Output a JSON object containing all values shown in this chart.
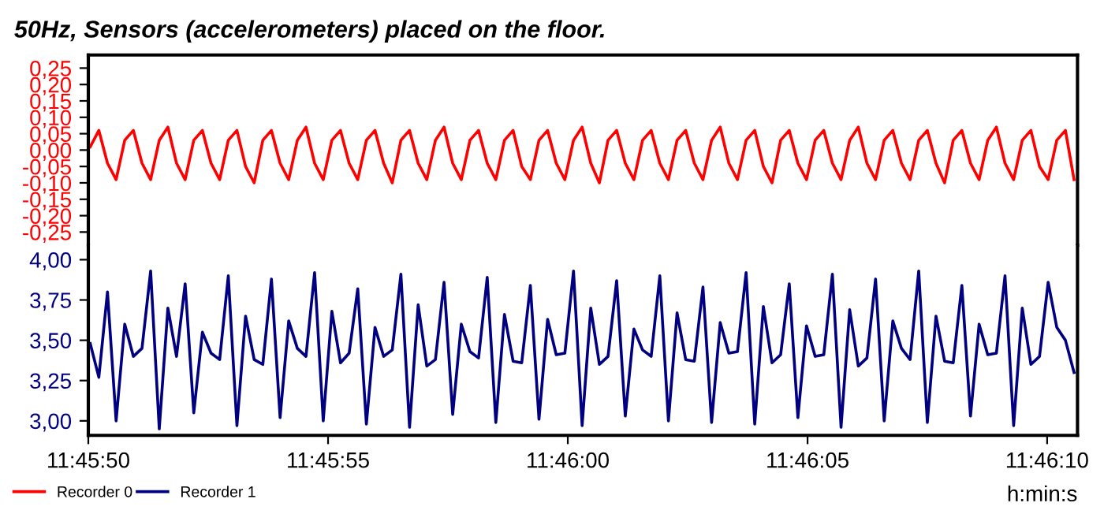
{
  "chart_data": [
    {
      "type": "line",
      "title": "50Hz, Sensors (accelerometers) placed on the floor.",
      "tick_labels": "y",
      "legend": "bottom left",
      "x": [
        11.7639,
        11.76395,
        11.764,
        11.76405,
        11.7641,
        11.76415,
        11.7642,
        11.76425,
        11.7643,
        11.76435,
        11.7644,
        11.76445,
        11.7645,
        11.76455,
        11.7646,
        11.76465,
        11.7647,
        11.76475,
        11.7648,
        11.76485,
        11.7649,
        11.76495,
        11.765,
        11.76505,
        11.7651,
        11.76515,
        11.7652,
        11.76525,
        11.7653,
        11.76535,
        11.7654,
        11.76545,
        11.7655,
        11.76555,
        11.7656,
        11.76565,
        11.7657,
        11.76575,
        11.7658,
        11.76585,
        11.7659,
        11.76595,
        11.766,
        11.76605,
        11.7661,
        11.76615,
        11.7662,
        11.76625,
        11.7663,
        11.76635,
        11.7664,
        11.76645,
        11.7665,
        11.76655,
        11.7666,
        11.76665,
        11.7667,
        11.76675,
        11.7668,
        11.76685,
        11.7669,
        11.76695,
        11.767,
        11.76705,
        11.7671,
        11.76715,
        11.7672,
        11.76725,
        11.7673,
        11.76735,
        11.7674,
        11.76745,
        11.7675,
        11.76755,
        11.7676,
        11.76765,
        11.7677,
        11.76775,
        11.7678,
        11.76785,
        11.7679,
        11.76795,
        11.768,
        11.76805,
        11.7681,
        11.76815,
        11.7682,
        11.76825,
        11.7683,
        11.76835,
        11.7684,
        11.76845,
        11.7685,
        11.76855,
        11.7686,
        11.76865,
        11.7687,
        11.76875,
        11.7688,
        11.76885,
        11.7689,
        11.76895,
        11.769,
        11.76905,
        11.7691,
        11.76915,
        11.7692,
        11.76925,
        11.7693,
        11.76935,
        11.7694,
        11.76945,
        11.7695,
        11.76955,
        11.7696
      ],
      "series": [
        {
          "name": "Recorder 0",
          "color": "#ff0000",
          "values": [
            0.01,
            0.06,
            -0.04,
            -0.09,
            0.03,
            0.06,
            -0.04,
            -0.09,
            0.03,
            0.07,
            -0.04,
            -0.09,
            0.03,
            0.06,
            -0.04,
            -0.09,
            0.03,
            0.06,
            -0.05,
            -0.1,
            0.03,
            0.06,
            -0.04,
            -0.09,
            0.03,
            0.07,
            -0.04,
            -0.09,
            0.03,
            0.06,
            -0.04,
            -0.09,
            0.03,
            0.06,
            -0.04,
            -0.1,
            0.03,
            0.06,
            -0.04,
            -0.09,
            0.03,
            0.07,
            -0.04,
            -0.09,
            0.03,
            0.06,
            -0.04,
            -0.09,
            0.03,
            0.06,
            -0.05,
            -0.09,
            0.03,
            0.06,
            -0.04,
            -0.09,
            0.03,
            0.07,
            -0.04,
            -0.1,
            0.03,
            0.06,
            -0.04,
            -0.09,
            0.03,
            0.06,
            -0.04,
            -0.09,
            0.03,
            0.06,
            -0.04,
            -0.09,
            0.03,
            0.07,
            -0.04,
            -0.09,
            0.03,
            0.06,
            -0.05,
            -0.1,
            0.03,
            0.06,
            -0.04,
            -0.09,
            0.03,
            0.06,
            -0.04,
            -0.09,
            0.03,
            0.07,
            -0.04,
            -0.09,
            0.03,
            0.06,
            -0.04,
            -0.09,
            0.03,
            0.06,
            -0.04,
            -0.1,
            0.03,
            0.06,
            -0.04,
            -0.09,
            0.03,
            0.07,
            -0.04,
            -0.09,
            0.03,
            0.06,
            -0.05,
            -0.09,
            0.03,
            0.06,
            -0.09
          ]
        }
      ],
      "xlim": [
        11.763889,
        11.76962
      ],
      "ylim": [
        -0.29,
        0.29
      ],
      "yticks": [
        {
          "value": -0.25,
          "label": "-0,25"
        },
        {
          "value": -0.2,
          "label": "-0,20"
        },
        {
          "value": -0.15,
          "label": "-0,15"
        },
        {
          "value": -0.1,
          "label": "-0,10"
        },
        {
          "value": -0.05,
          "label": "-0,05"
        },
        {
          "value": 0,
          "label": "0,00"
        },
        {
          "value": 0.05,
          "label": "0,05"
        },
        {
          "value": 0.1,
          "label": "0,10"
        },
        {
          "value": 0.15,
          "label": "0,15"
        },
        {
          "value": 0.2,
          "label": "0,20"
        },
        {
          "value": 0.25,
          "label": "0,25"
        }
      ]
    },
    {
      "type": "line",
      "xlabel": "h:min:s",
      "legend": "bottom left",
      "x": [
        11.7639,
        11.76395,
        11.764,
        11.76405,
        11.7641,
        11.76415,
        11.7642,
        11.76425,
        11.7643,
        11.76435,
        11.7644,
        11.76445,
        11.7645,
        11.76455,
        11.7646,
        11.76465,
        11.7647,
        11.76475,
        11.7648,
        11.76485,
        11.7649,
        11.76495,
        11.765,
        11.76505,
        11.7651,
        11.76515,
        11.7652,
        11.76525,
        11.7653,
        11.76535,
        11.7654,
        11.76545,
        11.7655,
        11.76555,
        11.7656,
        11.76565,
        11.7657,
        11.76575,
        11.7658,
        11.76585,
        11.7659,
        11.76595,
        11.766,
        11.76605,
        11.7661,
        11.76615,
        11.7662,
        11.76625,
        11.7663,
        11.76635,
        11.7664,
        11.76645,
        11.7665,
        11.76655,
        11.7666,
        11.76665,
        11.7667,
        11.76675,
        11.7668,
        11.76685,
        11.7669,
        11.76695,
        11.767,
        11.76705,
        11.7671,
        11.76715,
        11.7672,
        11.76725,
        11.7673,
        11.76735,
        11.7674,
        11.76745,
        11.7675,
        11.76755,
        11.7676,
        11.76765,
        11.7677,
        11.76775,
        11.7678,
        11.76785,
        11.7679,
        11.76795,
        11.768,
        11.76805,
        11.7681,
        11.76815,
        11.7682,
        11.76825,
        11.7683,
        11.76835,
        11.7684,
        11.76845,
        11.7685,
        11.76855,
        11.7686,
        11.76865,
        11.7687,
        11.76875,
        11.7688,
        11.76885,
        11.7689,
        11.76895,
        11.769,
        11.76905,
        11.7691,
        11.76915,
        11.7692,
        11.76925,
        11.7693,
        11.76935,
        11.7694,
        11.76945,
        11.7695,
        11.76955,
        11.7696
      ],
      "series": [
        {
          "name": "Recorder 1",
          "color": "#000080",
          "values": [
            3.48,
            3.27,
            3.8,
            3.0,
            3.6,
            3.4,
            3.45,
            3.93,
            2.95,
            3.7,
            3.4,
            3.85,
            3.05,
            3.55,
            3.42,
            3.38,
            3.9,
            2.97,
            3.65,
            3.38,
            3.35,
            3.88,
            3.02,
            3.62,
            3.45,
            3.4,
            3.92,
            3.0,
            3.68,
            3.36,
            3.42,
            3.82,
            2.98,
            3.58,
            3.4,
            3.44,
            3.91,
            2.96,
            3.72,
            3.34,
            3.38,
            3.86,
            3.04,
            3.6,
            3.43,
            3.39,
            3.89,
            2.99,
            3.66,
            3.37,
            3.36,
            3.84,
            3.01,
            3.63,
            3.41,
            3.42,
            3.93,
            2.97,
            3.7,
            3.35,
            3.4,
            3.87,
            3.03,
            3.57,
            3.44,
            3.4,
            3.9,
            3.0,
            3.67,
            3.38,
            3.37,
            3.83,
            2.99,
            3.61,
            3.42,
            3.43,
            3.92,
            2.98,
            3.71,
            3.36,
            3.41,
            3.85,
            3.02,
            3.59,
            3.4,
            3.41,
            3.91,
            2.96,
            3.69,
            3.34,
            3.39,
            3.88,
            3.0,
            3.62,
            3.45,
            3.38,
            3.93,
            2.99,
            3.65,
            3.37,
            3.36,
            3.84,
            3.03,
            3.6,
            3.41,
            3.42,
            3.9,
            2.97,
            3.7,
            3.35,
            3.4,
            3.86,
            3.58,
            3.5,
            3.3
          ]
        }
      ],
      "xlim": [
        11.763889,
        11.76962
      ],
      "ylim": [
        2.91,
        4.09
      ],
      "xticks": [
        {
          "value": 11.763889,
          "label": "11:45:50"
        },
        {
          "value": 11.765278,
          "label": "11:45:55"
        },
        {
          "value": 11.766667,
          "label": "11:46:00"
        },
        {
          "value": 11.768056,
          "label": "11:46:05"
        },
        {
          "value": 11.769444,
          "label": "11:46:10"
        }
      ],
      "yticks": [
        {
          "value": 3.0,
          "label": "3,00"
        },
        {
          "value": 3.25,
          "label": "3,25"
        },
        {
          "value": 3.5,
          "label": "3,50"
        },
        {
          "value": 3.75,
          "label": "3,75"
        },
        {
          "value": 4.0,
          "label": "4,00"
        }
      ]
    }
  ]
}
